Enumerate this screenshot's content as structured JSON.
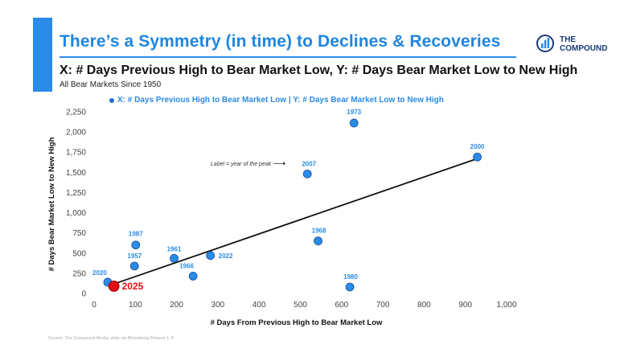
{
  "header": {
    "title": "There’s a Symmetry (in time) to Declines & Recoveries",
    "subtitle": "X: # Days Previous High to Bear Market Low, Y: # Days Bear Market Low to New High",
    "subsubtitle": "All Bear Markets Since 1950",
    "logo_line1": "THE",
    "logo_line2": "COMPOUND",
    "accent_color": "#2a8be8"
  },
  "source": "Source: The Compound Media, data via Bloomberg Finance L.P.",
  "chart_data": {
    "type": "scatter",
    "legend": "X: # Days Previous High to Bear Market Low | Y: # Days Bear Market Low to New High",
    "legend_position": "top",
    "xlabel": "# Days From Previous High to Bear Market Low",
    "ylabel": "# Days Bear Market Low to New High",
    "xlim": [
      0,
      1000
    ],
    "ylim": [
      0,
      2250
    ],
    "xticks": [
      0,
      100,
      200,
      300,
      400,
      500,
      600,
      700,
      800,
      900,
      1000
    ],
    "yticks": [
      0,
      250,
      500,
      750,
      1000,
      1250,
      1500,
      1750,
      2000,
      2250
    ],
    "xtick_labels": [
      "0",
      "100",
      "200",
      "300",
      "400",
      "500",
      "600",
      "700",
      "800",
      "900",
      "1,000"
    ],
    "ytick_labels": [
      "0",
      "250",
      "500",
      "750",
      "1,000",
      "1,250",
      "1,500",
      "1,750",
      "2,000",
      "2,250"
    ],
    "grid": false,
    "point_color": "#2a8be8",
    "highlight_color": "#e01010",
    "points": [
      {
        "label": "2020",
        "x": 33,
        "y": 140
      },
      {
        "label": "1957",
        "x": 98,
        "y": 340
      },
      {
        "label": "1987",
        "x": 101,
        "y": 600
      },
      {
        "label": "1961",
        "x": 194,
        "y": 435
      },
      {
        "label": "1966",
        "x": 240,
        "y": 215
      },
      {
        "label": "2022",
        "x": 282,
        "y": 470
      },
      {
        "label": "2007",
        "x": 517,
        "y": 1480
      },
      {
        "label": "1968",
        "x": 543,
        "y": 650
      },
      {
        "label": "1980",
        "x": 620,
        "y": 80
      },
      {
        "label": "1973",
        "x": 630,
        "y": 2110
      },
      {
        "label": "2000",
        "x": 929,
        "y": 1690
      }
    ],
    "highlight": {
      "label": "2025",
      "x": 48,
      "y": 90
    },
    "trendline": {
      "x1": 35,
      "y1": 95,
      "x2": 929,
      "y2": 1670
    },
    "annotation": "Label = year of the peak",
    "annotation_target": "2007"
  }
}
